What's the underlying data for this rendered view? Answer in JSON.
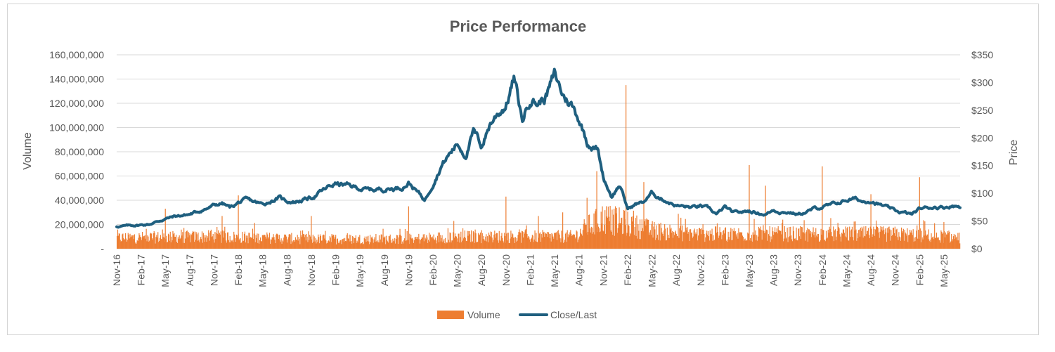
{
  "chart_data": {
    "type": "bar+line",
    "title": "Price Performance",
    "y_left_label": "Volume",
    "y_right_label": "Price",
    "y_left_range": [
      0,
      160000000
    ],
    "y_right_range": [
      0,
      350
    ],
    "y_left_ticks": [
      "-",
      "20,000,000",
      "40,000,000",
      "60,000,000",
      "80,000,000",
      "100,000,000",
      "120,000,000",
      "140,000,000",
      "160,000,000"
    ],
    "y_right_ticks": [
      "$0",
      "$50",
      "$100",
      "$150",
      "$200",
      "$250",
      "$300",
      "$350"
    ],
    "x_ticks": [
      "Nov-16",
      "Feb-17",
      "May-17",
      "Aug-17",
      "Nov-17",
      "Feb-18",
      "May-18",
      "Aug-18",
      "Nov-18",
      "Feb-19",
      "May-19",
      "Aug-19",
      "Nov-19",
      "Feb-20",
      "May-20",
      "Aug-20",
      "Nov-20",
      "Feb-21",
      "May-21",
      "Aug-21",
      "Nov-21",
      "Feb-22",
      "May-22",
      "Aug-22",
      "Nov-22",
      "Feb-23",
      "May-23",
      "Aug-23",
      "Nov-23",
      "Feb-24",
      "May-24",
      "Aug-24",
      "Nov-24",
      "Feb-25",
      "May-25"
    ],
    "x_range_months": [
      0,
      104
    ],
    "colors": {
      "volume": "#ed7d31",
      "price": "#1f5f7f",
      "grid": "#d9d9d9"
    },
    "legend": [
      {
        "name": "Volume",
        "marker": "bar"
      },
      {
        "name": "Close/Last",
        "marker": "line"
      }
    ],
    "series": [
      {
        "name": "Close/Last",
        "axis": "right",
        "unit": "USD",
        "x_months": [
          0,
          2,
          4,
          6,
          7,
          9,
          11,
          12,
          13,
          14,
          15,
          16,
          18,
          20,
          21,
          22,
          24,
          26,
          27,
          29,
          31,
          33,
          35,
          36,
          38,
          40,
          42,
          43,
          44,
          45,
          46,
          47,
          48,
          49,
          50,
          51,
          52,
          53,
          54,
          55,
          56,
          57,
          58,
          58.7,
          59.3,
          60,
          61,
          62,
          63,
          64,
          65,
          66,
          67,
          68,
          69,
          70,
          71,
          72,
          73,
          74,
          75,
          76,
          78,
          80,
          81,
          82,
          83,
          84,
          85,
          86,
          88,
          90,
          91,
          92,
          93,
          94,
          96,
          98,
          99,
          100,
          101,
          102,
          103,
          104
        ],
        "values": [
          40,
          42,
          44,
          54,
          58,
          62,
          72,
          78,
          82,
          74,
          83,
          88,
          80,
          92,
          86,
          85,
          92,
          110,
          118,
          112,
          106,
          108,
          110,
          120,
          88,
          150,
          190,
          170,
          210,
          185,
          225,
          245,
          260,
          308,
          230,
          275,
          262,
          278,
          312,
          278,
          262,
          235,
          195,
          185,
          180,
          130,
          95,
          115,
          72,
          80,
          85,
          100,
          92,
          85,
          78,
          76,
          74,
          77,
          72,
          62,
          75,
          64,
          68,
          62,
          70,
          66,
          66,
          62,
          66,
          72,
          78,
          88,
          90,
          85,
          88,
          80,
          68,
          62,
          72,
          74,
          76,
          75,
          78,
          76
        ]
      },
      {
        "name": "Volume",
        "axis": "left",
        "unit": "shares",
        "x_months": [
          0,
          12,
          24,
          36,
          42,
          48,
          56,
          57,
          58,
          58.7,
          60,
          62,
          66,
          72,
          78,
          84,
          90,
          96,
          102,
          104
        ],
        "typical_daily_values": [
          9000000,
          10000000,
          8000000,
          8000000,
          10000000,
          10000000,
          10000000,
          12000000,
          18000000,
          20000000,
          25000000,
          22000000,
          15000000,
          12000000,
          12000000,
          12000000,
          12000000,
          12000000,
          10000000,
          9000000
        ],
        "notable_spikes": [
          {
            "x_month": 6,
            "value": 33000000
          },
          {
            "x_month": 13,
            "value": 27000000
          },
          {
            "x_month": 15,
            "value": 44000000
          },
          {
            "x_month": 24,
            "value": 27000000
          },
          {
            "x_month": 36,
            "value": 35000000
          },
          {
            "x_month": 48,
            "value": 43000000
          },
          {
            "x_month": 52,
            "value": 27000000
          },
          {
            "x_month": 55,
            "value": 30000000
          },
          {
            "x_month": 58,
            "value": 42000000
          },
          {
            "x_month": 59.2,
            "value": 64000000
          },
          {
            "x_month": 62.8,
            "value": 135000000
          },
          {
            "x_month": 65,
            "value": 55000000
          },
          {
            "x_month": 78,
            "value": 69000000
          },
          {
            "x_month": 80,
            "value": 52000000
          },
          {
            "x_month": 87,
            "value": 68000000
          },
          {
            "x_month": 93,
            "value": 45000000
          },
          {
            "x_month": 99,
            "value": 59000000
          },
          {
            "x_month": 102,
            "value": 22000000
          }
        ]
      }
    ]
  }
}
